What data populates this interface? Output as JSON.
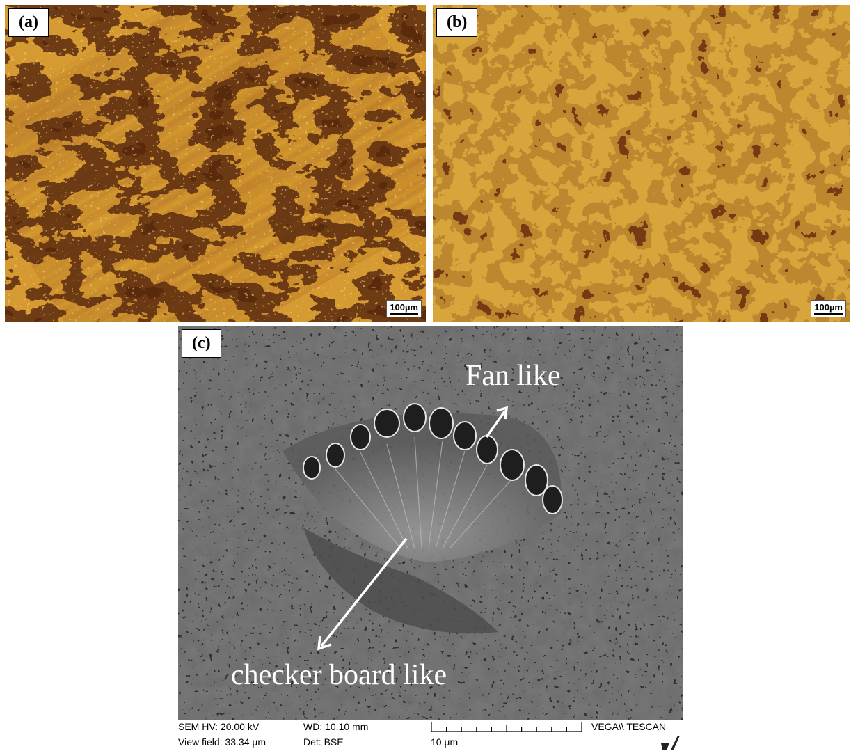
{
  "panels": [
    {
      "label": "(a)",
      "scale_bar": "100µm",
      "colors": {
        "light": "#d59a32",
        "dark": "#5a2a0c",
        "mid": "#9b5a1a"
      }
    },
    {
      "label": "(b)",
      "scale_bar": "100µm",
      "colors": {
        "light": "#d8a43c",
        "dark": "#6a2c10",
        "mid": "#b27a2a"
      }
    },
    {
      "label": "(c)",
      "annotations": {
        "fan": "Fan like",
        "checker": "checker board like"
      },
      "colors": {
        "base": "#6d6d6d",
        "dark": "#2a2a2a",
        "light": "#d0d0d0"
      }
    }
  ],
  "sem_info": {
    "hv": "SEM HV: 20.00 kV",
    "view_field": "View field: 33.34 µm",
    "wd": "WD: 10.10 mm",
    "detector": "Det: BSE",
    "scale_label": "10 µm",
    "vendor": "VEGA\\\\ TESCAN"
  },
  "icons": {
    "logo": "tescan-logo-icon",
    "arrows": "arrow-icon"
  }
}
